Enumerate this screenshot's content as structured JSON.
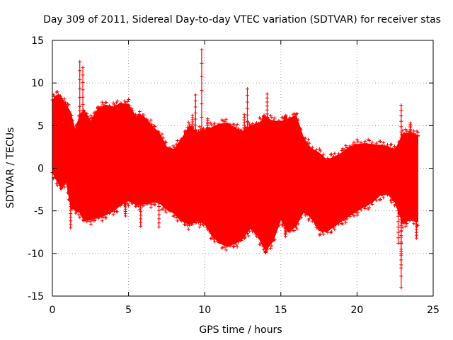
{
  "chart_data": {
    "type": "scatter",
    "title": "Day 309 of 2011, Sidereal Day-to-day VTEC variation (SDTVAR) for receiver stas",
    "xlabel": "GPS time / hours",
    "ylabel": "SDTVAR / TECUs",
    "xlim": [
      0,
      25
    ],
    "ylim": [
      -15,
      15
    ],
    "xticks": [
      0,
      5,
      10,
      15,
      20,
      25
    ],
    "yticks": [
      -15,
      -10,
      -5,
      0,
      5,
      10,
      15
    ],
    "grid": true,
    "marker": "+",
    "color": "#ff0000",
    "series": [
      {
        "name": "SDTVAR",
        "upper_envelope": {
          "x": [
            0,
            0.3,
            0.6,
            0.9,
            1.2,
            1.5,
            1.8,
            2.1,
            2.5,
            3,
            3.5,
            4,
            4.5,
            5,
            5.5,
            6,
            6.5,
            7,
            7.5,
            8,
            8.5,
            9,
            9.5,
            10,
            10.5,
            11,
            11.5,
            12,
            12.5,
            13,
            13.5,
            14,
            14.5,
            15,
            15.5,
            16,
            16.5,
            17,
            17.5,
            18,
            18.5,
            19,
            19.5,
            20,
            20.5,
            21,
            21.5,
            22,
            22.5,
            23,
            23.5,
            24
          ],
          "y": [
            8,
            8.6,
            8.3,
            7.5,
            6.5,
            4.5,
            6.2,
            6.8,
            5.5,
            7,
            7.4,
            7.2,
            7.6,
            7.5,
            6,
            6.1,
            5,
            4.2,
            2.5,
            2.2,
            3.5,
            5,
            4.2,
            4.5,
            4.8,
            5.2,
            5.3,
            4.7,
            4.3,
            5,
            5.2,
            6,
            5.5,
            5.5,
            5.8,
            6.2,
            3.5,
            2.3,
            1.8,
            1,
            1.3,
            1.8,
            2.5,
            2.8,
            2.9,
            2.8,
            2.7,
            2.6,
            2.1,
            4,
            4.2,
            3.8
          ]
        },
        "lower_envelope": {
          "x": [
            0,
            0.3,
            0.6,
            0.9,
            1.2,
            1.5,
            1.8,
            2.1,
            2.5,
            3,
            3.5,
            4,
            4.5,
            5,
            5.5,
            6,
            6.5,
            7,
            7.5,
            8,
            8.5,
            9,
            9.5,
            10,
            10.5,
            11,
            11.5,
            12,
            12.5,
            13,
            13.5,
            14,
            14.5,
            15,
            15.5,
            16,
            16.5,
            17,
            17.5,
            18,
            18.5,
            19,
            19.5,
            20,
            20.5,
            21,
            21.5,
            22,
            22.5,
            23,
            23.5,
            24
          ],
          "y": [
            -0.5,
            -1.5,
            -2.5,
            -1.5,
            -4.5,
            -5,
            -5.2,
            -6.2,
            -6,
            -5.8,
            -5.5,
            -5,
            -4.3,
            -3.8,
            -4.3,
            -4.2,
            -4,
            -4,
            -4.8,
            -5.3,
            -6.2,
            -6.6,
            -6.2,
            -6.5,
            -8,
            -8.8,
            -9.2,
            -8.8,
            -8.3,
            -7,
            -8,
            -9.7,
            -8.5,
            -6,
            -7.5,
            -6.8,
            -5.1,
            -5.8,
            -7.3,
            -7.5,
            -6.8,
            -6.2,
            -5.6,
            -5,
            -4.5,
            -4,
            -3.2,
            -3,
            -4,
            -6.5,
            -6,
            -6.3
          ]
        },
        "spike_highs": [
          {
            "x": 0.4,
            "y": 8.6
          },
          {
            "x": 1.8,
            "y": 12.5
          },
          {
            "x": 2.0,
            "y": 11.8
          },
          {
            "x": 3.0,
            "y": 7.2
          },
          {
            "x": 5.7,
            "y": 6.3
          },
          {
            "x": 9.2,
            "y": 6.2
          },
          {
            "x": 9.4,
            "y": 8.6
          },
          {
            "x": 9.8,
            "y": 13.9
          },
          {
            "x": 10.2,
            "y": 5.8
          },
          {
            "x": 12.6,
            "y": 6.3
          },
          {
            "x": 12.8,
            "y": 9.3
          },
          {
            "x": 13.9,
            "y": 6.2
          },
          {
            "x": 14.1,
            "y": 8.7
          },
          {
            "x": 15.3,
            "y": 6.1
          },
          {
            "x": 22.9,
            "y": 7.4
          },
          {
            "x": 23.5,
            "y": 5.3
          },
          {
            "x": 24.0,
            "y": 3.8
          }
        ],
        "spike_lows": [
          {
            "x": 1.2,
            "y": -7
          },
          {
            "x": 4.8,
            "y": -5.6
          },
          {
            "x": 5.8,
            "y": -6.8
          },
          {
            "x": 7.0,
            "y": -6.9
          },
          {
            "x": 14.0,
            "y": -9.9
          },
          {
            "x": 15.3,
            "y": -8.0
          },
          {
            "x": 22.7,
            "y": -8.8
          },
          {
            "x": 22.9,
            "y": -10.2
          },
          {
            "x": 22.9,
            "y": -11.7
          },
          {
            "x": 22.9,
            "y": -14.0
          },
          {
            "x": 23.9,
            "y": -8.2
          }
        ]
      }
    ]
  }
}
